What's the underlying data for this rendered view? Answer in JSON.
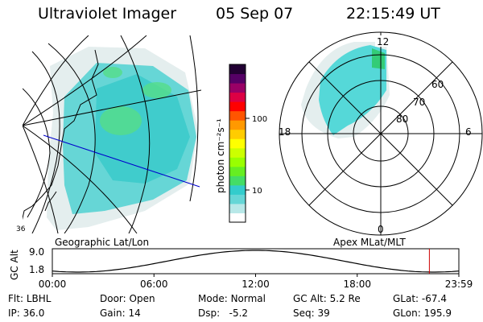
{
  "header": {
    "title": "Ultraviolet Imager",
    "date": "05 Sep 07",
    "time": "22:15:49 UT"
  },
  "geo_panel": {
    "caption": "Geographic Lat/Lon",
    "corner_label": "36"
  },
  "colorbar": {
    "unit_label": "photon cm⁻²s⁻¹",
    "ticks": [
      {
        "label": "100",
        "value": 100
      },
      {
        "label": "10",
        "value": 10
      }
    ],
    "colors": [
      "#ffffff",
      "#b8e8e8",
      "#66d6d6",
      "#33cccc",
      "#44dd66",
      "#66ee22",
      "#99ff00",
      "#ccff00",
      "#ffff00",
      "#ffcc00",
      "#ff9900",
      "#ff5500",
      "#ff0000",
      "#dd0044",
      "#990066",
      "#550066",
      "#220033"
    ]
  },
  "polar_panel": {
    "caption": "Apex  MLat/MLT",
    "mlt_labels": {
      "top": "12",
      "left": "18",
      "right": "6",
      "bottom": "0"
    },
    "lat_labels": [
      "80",
      "70",
      "60"
    ]
  },
  "altitude_plot": {
    "ylabel": "GC Alt",
    "yticks": [
      "9.0",
      "1.8"
    ],
    "xticks": [
      "00:00",
      "06:00",
      "12:00",
      "18:00",
      "23:59"
    ],
    "current_time_hours": 22.26,
    "line_color": "#000000",
    "marker_color": "#cc0000"
  },
  "status": {
    "filter": {
      "label": "Flt:",
      "value": "LBHL"
    },
    "ip": {
      "label": "IP:",
      "value": "36.0"
    },
    "door": {
      "label": "Door:",
      "value": "Open"
    },
    "gain": {
      "label": "Gain:",
      "value": "14"
    },
    "mode": {
      "label": "Mode:",
      "value": "Normal"
    },
    "dsp": {
      "label": "Dsp:",
      "value": "-5.2"
    },
    "gc_alt": {
      "label": "GC Alt:",
      "value": "5.2 Re"
    },
    "seq": {
      "label": "Seq:",
      "value": "39"
    },
    "glat": {
      "label": "GLat:",
      "value": "-67.4"
    },
    "glon": {
      "label": "GLon:",
      "value": "195.9"
    }
  }
}
